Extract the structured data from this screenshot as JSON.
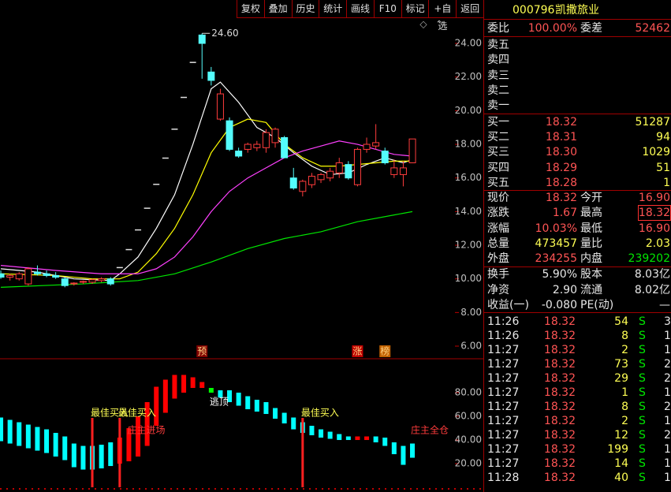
{
  "toolbar": [
    "复权",
    "叠加",
    "历史",
    "统计",
    "画线",
    "F10",
    "标记",
    "+自选",
    "返回"
  ],
  "price_chart": {
    "type": "candlestick",
    "xlim": [
      -0.09,
      52.67
    ],
    "ylim": [
      5.25,
      25.55
    ],
    "yticks": [
      {
        "value": 6,
        "label": "6.00"
      },
      {
        "value": 8,
        "label": "8.00"
      },
      {
        "value": 10,
        "label": "10.00"
      },
      {
        "value": 12,
        "label": "12.00"
      },
      {
        "value": 14,
        "label": "14.00"
      },
      {
        "value": 16,
        "label": "16.00"
      },
      {
        "value": 18,
        "label": "18.00"
      },
      {
        "value": 20,
        "label": "20.00"
      },
      {
        "value": 22,
        "label": "22.00"
      },
      {
        "value": 24,
        "label": "24.00"
      }
    ],
    "up_color": "#ff3c3c",
    "down_color": "#54fcfc",
    "flat_color": "#e0e0e0",
    "candles": [
      [
        10.3,
        10.5,
        10.0,
        10.1
      ],
      [
        10.1,
        10.3,
        9.9,
        10.2
      ],
      [
        10.0,
        10.4,
        9.9,
        10.3
      ],
      [
        9.7,
        10.7,
        9.6,
        10.6
      ],
      [
        10.4,
        10.8,
        10.2,
        10.3
      ],
      [
        10.3,
        10.5,
        10.1,
        10.2
      ],
      [
        10.2,
        10.4,
        10.0,
        10.1
      ],
      [
        10.0,
        10.1,
        9.5,
        9.6
      ],
      [
        9.7,
        9.8,
        9.6,
        9.75
      ],
      [
        9.8,
        9.9,
        9.7,
        9.85
      ],
      [
        9.8,
        10.0,
        9.7,
        9.95
      ],
      [
        9.9,
        10.1,
        9.8,
        10.0
      ],
      [
        10.0,
        10.1,
        9.6,
        9.7
      ],
      [
        10.67,
        10.67,
        10.67,
        10.67
      ],
      [
        11.74,
        11.74,
        11.74,
        11.74
      ],
      [
        12.91,
        12.91,
        12.91,
        12.91
      ],
      [
        14.2,
        14.2,
        14.2,
        14.2
      ],
      [
        15.62,
        15.62,
        15.62,
        15.62
      ],
      [
        17.18,
        17.18,
        17.18,
        17.18
      ],
      [
        18.9,
        18.9,
        18.9,
        18.9
      ],
      [
        20.79,
        20.79,
        20.79,
        20.79
      ],
      [
        22.87,
        22.87,
        22.87,
        22.87
      ],
      [
        24.5,
        24.6,
        21.9,
        24.0
      ],
      [
        22.3,
        22.6,
        21.5,
        21.8
      ],
      [
        19.5,
        21.3,
        19.4,
        21.0
      ],
      [
        19.4,
        19.6,
        17.6,
        17.7
      ],
      [
        17.6,
        17.8,
        17.2,
        17.3
      ],
      [
        17.7,
        18.1,
        17.5,
        18.0
      ],
      [
        17.8,
        18.2,
        17.6,
        18.0
      ],
      [
        17.8,
        18.9,
        17.5,
        18.7
      ],
      [
        18.1,
        19.0,
        17.8,
        18.9
      ],
      [
        18.4,
        18.5,
        17.2,
        17.2
      ],
      [
        16.0,
        16.6,
        15.3,
        15.4
      ],
      [
        15.2,
        15.9,
        14.9,
        15.8
      ],
      [
        15.6,
        16.3,
        15.4,
        16.1
      ],
      [
        15.9,
        16.3,
        15.7,
        16.2
      ],
      [
        16.0,
        16.6,
        15.8,
        16.4
      ],
      [
        16.3,
        17.2,
        16.0,
        16.9
      ],
      [
        16.8,
        17.0,
        15.9,
        16.0
      ],
      [
        15.6,
        17.8,
        15.5,
        17.7
      ],
      [
        17.7,
        18.4,
        17.5,
        18.0
      ],
      [
        17.9,
        19.2,
        17.7,
        18.1
      ],
      [
        17.6,
        17.8,
        16.8,
        16.9
      ],
      [
        16.2,
        17.1,
        16.0,
        16.6
      ],
      [
        16.2,
        17.0,
        15.5,
        16.6
      ],
      [
        16.9,
        18.32,
        16.9,
        18.32
      ]
    ],
    "lines": [
      {
        "color": "#ffffff",
        "x": [
          0,
          4,
          8,
          12,
          13,
          15,
          17,
          19,
          21,
          23,
          24,
          26,
          28,
          30,
          32,
          34,
          36,
          38,
          40,
          42,
          44,
          45
        ],
        "values": [
          10.6,
          10.4,
          10.0,
          9.9,
          10.3,
          11.3,
          13.0,
          15.0,
          18.0,
          21.3,
          21.7,
          20.5,
          19.0,
          18.4,
          17.5,
          16.7,
          16.2,
          16.3,
          16.8,
          17.2,
          16.9,
          17.1
        ]
      },
      {
        "color": "#ffff00",
        "x": [
          0,
          6,
          10,
          13,
          15,
          17,
          19,
          21,
          23,
          25,
          27,
          29,
          31,
          33,
          35,
          37,
          39,
          41,
          43,
          45
        ],
        "values": [
          10.3,
          10.2,
          10.0,
          10.0,
          10.4,
          11.5,
          13.0,
          15.0,
          17.5,
          19.0,
          19.5,
          19.3,
          18.0,
          17.2,
          16.7,
          16.7,
          16.8,
          16.9,
          17.0,
          17.0
        ]
      },
      {
        "color": "#ff40ff",
        "x": [
          0,
          6,
          11,
          15,
          17,
          19,
          21,
          23,
          25,
          27,
          29,
          31,
          33,
          35,
          37,
          39,
          41,
          43,
          45
        ],
        "values": [
          10.8,
          10.5,
          10.3,
          10.3,
          10.6,
          11.3,
          12.5,
          14.0,
          15.2,
          16.0,
          16.6,
          17.2,
          17.6,
          17.9,
          18.2,
          18.0,
          17.7,
          17.4,
          17.3
        ]
      },
      {
        "color": "#00e600",
        "x": [
          0,
          9,
          15,
          19,
          23,
          27,
          31,
          35,
          39,
          43,
          45
        ],
        "values": [
          9.5,
          9.7,
          9.9,
          10.3,
          11.0,
          11.8,
          12.4,
          12.8,
          13.4,
          13.8,
          14.0
        ]
      }
    ],
    "peak_label": {
      "x": 22,
      "value": 24.6,
      "label": "24.60"
    },
    "markers": [
      {
        "x": 22,
        "text": "预"
      },
      {
        "x": 39,
        "text": "涨"
      },
      {
        "x": 42,
        "text": "榜"
      }
    ]
  },
  "indicator_chart": {
    "type": "bar",
    "xlim": [
      -0.09,
      52.67
    ],
    "ylim": [
      -1.3,
      108
    ],
    "yticks": [
      {
        "value": 20,
        "label": "20.00"
      },
      {
        "value": 40,
        "label": "40.00"
      },
      {
        "value": 60,
        "label": "60.00"
      },
      {
        "value": 80,
        "label": "80.00"
      }
    ],
    "tops": [
      59,
      57,
      55,
      53,
      51,
      49,
      46,
      43,
      37,
      35,
      35,
      36,
      38,
      42,
      50,
      60,
      72,
      85,
      91,
      95,
      95,
      93,
      89,
      84,
      82,
      82,
      80,
      77,
      74,
      72,
      67,
      63,
      59,
      55,
      52,
      49,
      47,
      45,
      43,
      43,
      43,
      43,
      42,
      38,
      35,
      37
    ],
    "bottoms": [
      39,
      37,
      35,
      33,
      31,
      29,
      26,
      23,
      17,
      15,
      15,
      16,
      18,
      20,
      22,
      26,
      35,
      52,
      63,
      75,
      80,
      84,
      84,
      80,
      76,
      72,
      69,
      66,
      64,
      62,
      58,
      54,
      49,
      46,
      44,
      42,
      41,
      40,
      40,
      40,
      40,
      38,
      35,
      28,
      19,
      25
    ],
    "colors": [
      "cyan",
      "cyan",
      "cyan",
      "cyan",
      "cyan",
      "cyan",
      "cyan",
      "cyan",
      "cyan",
      "cyan",
      "cyan",
      "cyan",
      "cyan",
      "red",
      "red",
      "red",
      "red",
      "red",
      "red",
      "red",
      "red",
      "red",
      "red",
      "lime",
      "cyan",
      "cyan",
      "cyan",
      "cyan",
      "cyan",
      "cyan",
      "cyan",
      "cyan",
      "cyan",
      "cyan",
      "cyan",
      "cyan",
      "cyan",
      "cyan",
      "cyan",
      "red",
      "red",
      "cyan",
      "cyan",
      "cyan",
      "cyan",
      "cyan"
    ],
    "signals": [
      {
        "x": 10,
        "label": "最佳买入"
      },
      {
        "x": 13,
        "label": "最佳买入"
      },
      {
        "x": 33,
        "label": "最佳买入"
      }
    ],
    "annotations": [
      {
        "x": 14,
        "y": 48,
        "text": "庄主进场",
        "color": "#ff3c3c"
      },
      {
        "x": 23,
        "y": 72,
        "text": "逃顶",
        "color": "#ffffff"
      },
      {
        "x": 45,
        "y": 48,
        "text": "庄主全仓",
        "color": "#ff3c3c"
      }
    ]
  },
  "quote": {
    "code": "000796",
    "name": "凯撒旅业",
    "ratio_label": "委比",
    "ratio": "100.00%",
    "diff_label": "委差",
    "diff": "52462",
    "asks": [
      "卖五",
      "卖四",
      "卖三",
      "卖二",
      "卖一"
    ],
    "bids": [
      [
        "买一",
        "18.32",
        "51287"
      ],
      [
        "买二",
        "18.31",
        "94"
      ],
      [
        "买三",
        "18.30",
        "1029"
      ],
      [
        "买四",
        "18.29",
        "51"
      ],
      [
        "买五",
        "18.28",
        "1"
      ]
    ],
    "stats": [
      [
        "现价",
        "18.32",
        "今开",
        "16.90"
      ],
      [
        "涨跌",
        "1.67",
        "最高",
        "18.32"
      ],
      [
        "涨幅",
        "10.03%",
        "最低",
        "16.90"
      ],
      [
        "总量",
        "473457",
        "量比",
        "2.03"
      ],
      [
        "外盘",
        "234255",
        "内盘",
        "239202"
      ],
      [
        "换手",
        "5.90%",
        "股本",
        "8.03亿"
      ],
      [
        "净资",
        "2.90",
        "流通",
        "8.02亿"
      ],
      [
        "收益(一)",
        "-0.080",
        "PE(动)",
        "—"
      ]
    ],
    "ticks": [
      [
        "11:26",
        "18.32",
        "54",
        "S",
        "3"
      ],
      [
        "11:26",
        "18.32",
        "8",
        "S",
        "1"
      ],
      [
        "11:27",
        "18.32",
        "2",
        "S",
        "1"
      ],
      [
        "11:27",
        "18.32",
        "73",
        "S",
        "2"
      ],
      [
        "11:27",
        "18.32",
        "29",
        "S",
        "2"
      ],
      [
        "11:27",
        "18.32",
        "1",
        "S",
        "1"
      ],
      [
        "11:27",
        "18.32",
        "8",
        "S",
        "2"
      ],
      [
        "11:27",
        "18.32",
        "2",
        "S",
        "1"
      ],
      [
        "11:27",
        "18.32",
        "12",
        "S",
        "2"
      ],
      [
        "11:27",
        "18.32",
        "199",
        "S",
        "1"
      ],
      [
        "11:27",
        "18.32",
        "14",
        "S",
        "1"
      ],
      [
        "11:28",
        "18.32",
        "40",
        "S",
        "1"
      ]
    ]
  }
}
